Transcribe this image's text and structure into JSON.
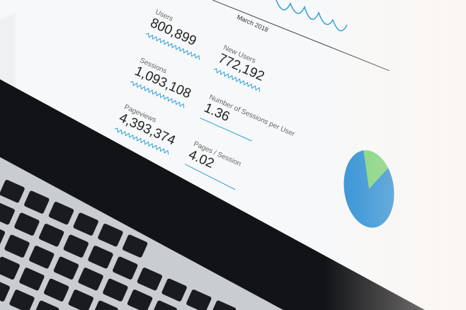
{
  "chart_header": {
    "date_label": "March 2018"
  },
  "metrics": [
    {
      "label": "Users",
      "value": "800,899"
    },
    {
      "label": "New Users",
      "value": "772,192"
    },
    {
      "label": "Sessions",
      "value": "1,093,108"
    },
    {
      "label": "Number of Sessions per User",
      "value": "1.36"
    },
    {
      "label": "Pageviews",
      "value": "4,393,374"
    },
    {
      "label": "Pages / Session",
      "value": "4.02"
    }
  ],
  "pie": {
    "segments": [
      {
        "color": "#7ed37a",
        "share": 0.14
      },
      {
        "color": "#2d8fd6",
        "share": 0.86
      }
    ]
  },
  "colors": {
    "accent": "#2d9fd6"
  }
}
